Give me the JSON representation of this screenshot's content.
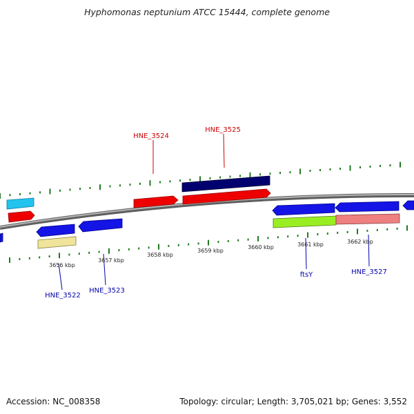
{
  "title": "Hyphomonas neptunium ATCC 15444, complete genome",
  "footer": {
    "accession": "Accession: NC_008358",
    "summary": "Topology: circular; Length: 3,705,021 bp; Genes: 3,552"
  },
  "kbp_labels": [
    "3656 kbp",
    "3657 kbp",
    "3658 kbp",
    "3659 kbp",
    "3660 kbp",
    "3661 kbp",
    "3662 kbp"
  ],
  "gene_labels": [
    {
      "id": "HNE_3524",
      "text": "HNE_3524",
      "color": "#cc0000"
    },
    {
      "id": "HNE_3525",
      "text": "HNE_3525",
      "color": "#cc0000"
    },
    {
      "id": "HNE_3522",
      "text": "HNE_3522",
      "color": "#0000aa"
    },
    {
      "id": "HNE_3523",
      "text": "HNE_3523",
      "color": "#0000aa"
    },
    {
      "id": "ftsY",
      "text": "ftsY",
      "color": "#0000aa"
    },
    {
      "id": "HNE_3527",
      "text": "HNE_3527",
      "color": "#0000aa"
    }
  ],
  "colors": {
    "backbone": "#8c8c8c",
    "tick": "#1f7a1f",
    "red": "#ee0000",
    "blue": "#1414e6",
    "navy": "#00006e",
    "cyan": "#22c4ee",
    "yellow": "#efe49a",
    "lime": "#99ee22",
    "pink": "#ee8080"
  }
}
